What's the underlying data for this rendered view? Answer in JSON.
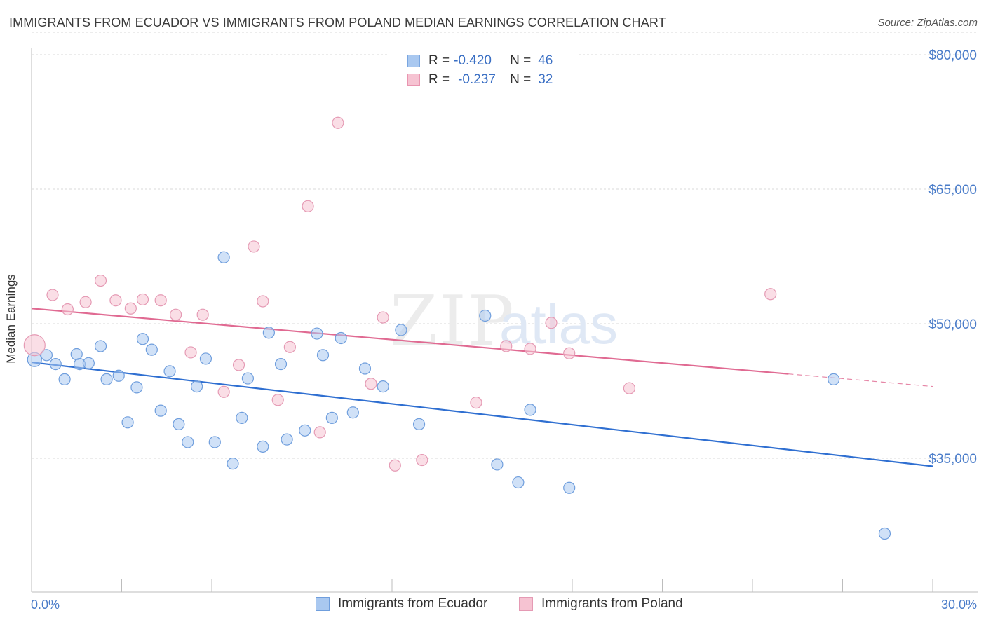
{
  "title": "IMMIGRANTS FROM ECUADOR VS IMMIGRANTS FROM POLAND MEDIAN EARNINGS CORRELATION CHART",
  "source": "Source: ZipAtlas.com",
  "watermark": {
    "zip": "ZIP",
    "atlas": "atlas"
  },
  "legend": {
    "rows": [
      {
        "r_label": "R =",
        "r_value": "-0.420",
        "n_label": "N =",
        "n_value": "46",
        "color": "#a9c8f0",
        "border": "#7aa6e0"
      },
      {
        "r_label": "R =",
        "r_value": "-0.237",
        "n_label": "N =",
        "n_value": "32",
        "color": "#f6c3d2",
        "border": "#e995b0"
      }
    ]
  },
  "chart_data": {
    "type": "scatter",
    "ylabel": "Median Earnings",
    "xlim": [
      0,
      30
    ],
    "ylim": [
      22000,
      84000
    ],
    "x_tick_labels": [
      "0.0%",
      "30.0%"
    ],
    "y_ticks": [
      {
        "value": 35000,
        "label": "$35,000"
      },
      {
        "value": 50000,
        "label": "$50,000"
      },
      {
        "value": 65000,
        "label": "$65,000"
      },
      {
        "value": 80000,
        "label": "$80,000"
      }
    ],
    "series": [
      {
        "name": "Immigrants from Ecuador",
        "color": "#a9c8f0",
        "stroke": "#6f9edd",
        "line_color": "#2f6fd1",
        "trend": {
          "x0": 0.0,
          "y0": 45700,
          "x1": 30.0,
          "y1": 34100
        },
        "points": [
          [
            0.1,
            46000
          ],
          [
            0.5,
            46500
          ],
          [
            0.8,
            45500
          ],
          [
            1.1,
            43800
          ],
          [
            1.5,
            46600
          ],
          [
            1.6,
            45500
          ],
          [
            1.9,
            45600
          ],
          [
            2.3,
            47500
          ],
          [
            2.5,
            43800
          ],
          [
            2.9,
            44200
          ],
          [
            3.2,
            39000
          ],
          [
            3.5,
            42900
          ],
          [
            3.7,
            48300
          ],
          [
            4.0,
            47100
          ],
          [
            4.3,
            40300
          ],
          [
            4.6,
            44700
          ],
          [
            4.9,
            38800
          ],
          [
            5.2,
            36800
          ],
          [
            5.5,
            43000
          ],
          [
            5.8,
            46100
          ],
          [
            6.1,
            36800
          ],
          [
            6.4,
            57400
          ],
          [
            6.7,
            34400
          ],
          [
            7.0,
            39500
          ],
          [
            7.2,
            43900
          ],
          [
            7.7,
            36300
          ],
          [
            7.9,
            49000
          ],
          [
            8.3,
            45500
          ],
          [
            8.5,
            37100
          ],
          [
            9.1,
            38100
          ],
          [
            9.5,
            48900
          ],
          [
            9.7,
            46500
          ],
          [
            10.0,
            39500
          ],
          [
            10.3,
            48400
          ],
          [
            10.7,
            40100
          ],
          [
            11.1,
            45000
          ],
          [
            11.7,
            43000
          ],
          [
            12.3,
            49300
          ],
          [
            12.9,
            38800
          ],
          [
            15.1,
            50900
          ],
          [
            15.5,
            34300
          ],
          [
            16.2,
            32300
          ],
          [
            16.6,
            40400
          ],
          [
            17.9,
            31700
          ],
          [
            26.7,
            43800
          ],
          [
            28.4,
            26600
          ]
        ]
      },
      {
        "name": "Immigrants from Poland",
        "color": "#f6c3d2",
        "stroke": "#e59ab4",
        "line_color": "#e06a92",
        "trend": {
          "x0": 0.0,
          "y0": 51700,
          "x1": 25.2,
          "y1": 44400,
          "dash_x1": 30.0,
          "dash_y1": 43000
        },
        "points": [
          [
            0.1,
            47600
          ],
          [
            0.7,
            53200
          ],
          [
            1.2,
            51600
          ],
          [
            1.8,
            52400
          ],
          [
            2.3,
            54800
          ],
          [
            2.8,
            52600
          ],
          [
            3.3,
            51700
          ],
          [
            3.7,
            52700
          ],
          [
            4.3,
            52600
          ],
          [
            4.8,
            51000
          ],
          [
            5.3,
            46800
          ],
          [
            5.7,
            51000
          ],
          [
            6.4,
            42400
          ],
          [
            6.9,
            45400
          ],
          [
            7.4,
            58600
          ],
          [
            7.7,
            52500
          ],
          [
            8.2,
            41500
          ],
          [
            8.6,
            47400
          ],
          [
            9.2,
            63100
          ],
          [
            9.6,
            37900
          ],
          [
            10.2,
            72400
          ],
          [
            11.3,
            43300
          ],
          [
            11.7,
            50700
          ],
          [
            12.1,
            34200
          ],
          [
            13.0,
            34800
          ],
          [
            14.8,
            41200
          ],
          [
            15.8,
            47500
          ],
          [
            16.6,
            47200
          ],
          [
            17.3,
            50100
          ],
          [
            17.9,
            46700
          ],
          [
            19.9,
            42800
          ],
          [
            24.6,
            53300
          ]
        ]
      }
    ]
  }
}
